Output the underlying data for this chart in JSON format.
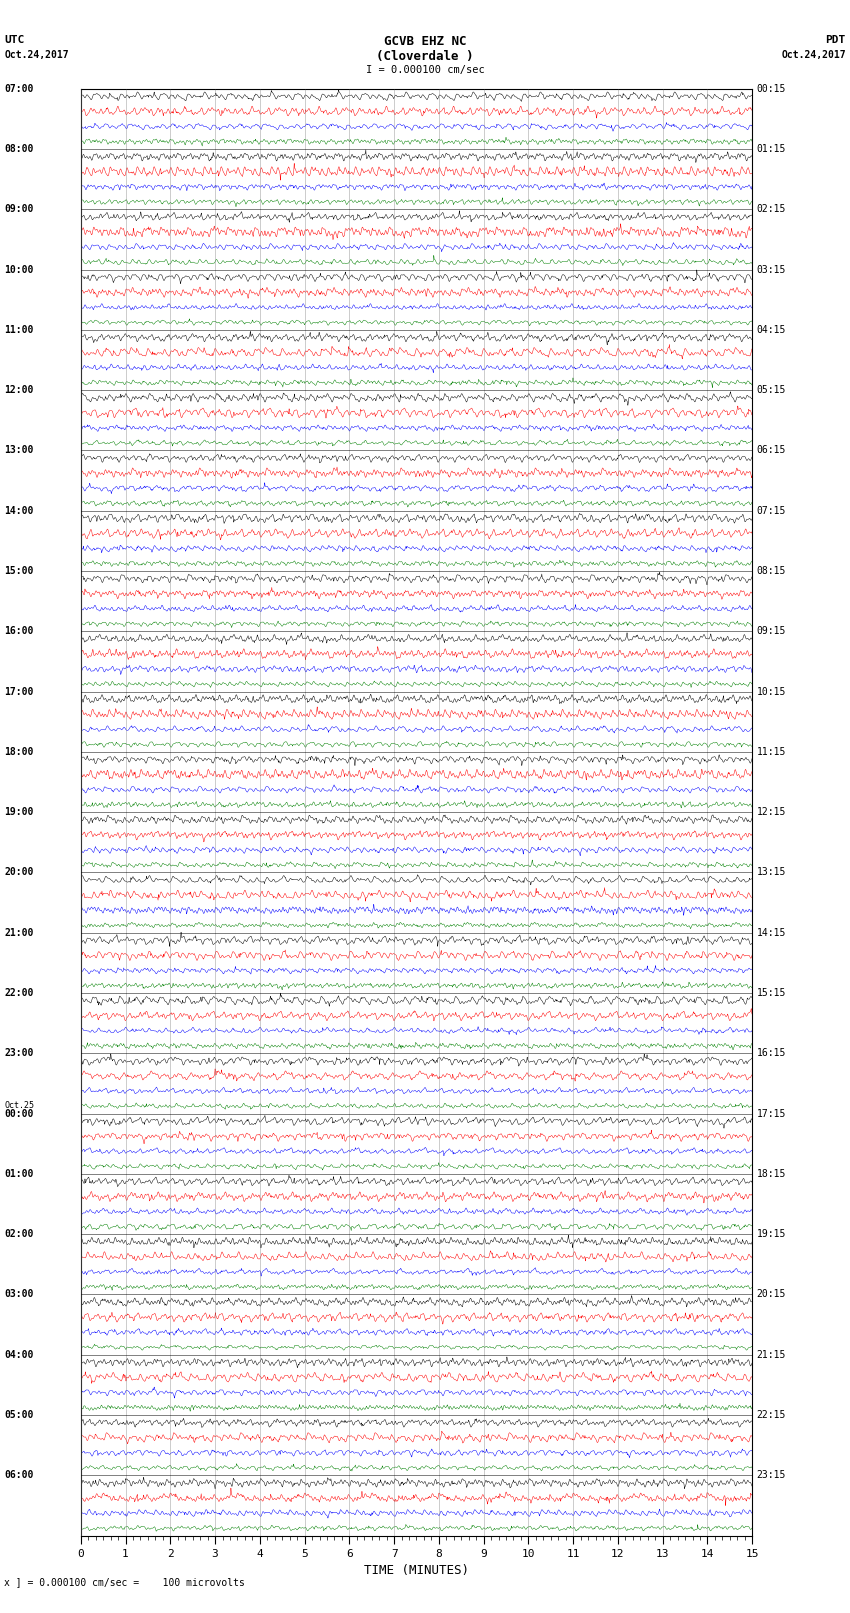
{
  "title_line1": "GCVB EHZ NC",
  "title_line2": "(Cloverdale )",
  "title_line3": "I = 0.000100 cm/sec",
  "label_utc": "UTC",
  "label_date_left": "Oct.24,2017",
  "label_pdt": "PDT",
  "label_date_right": "Oct.24,2017",
  "xlabel": "TIME (MINUTES)",
  "footer": "x ] = 0.000100 cm/sec =    100 microvolts",
  "left_labels": [
    "07:00",
    "08:00",
    "09:00",
    "10:00",
    "11:00",
    "12:00",
    "13:00",
    "14:00",
    "15:00",
    "16:00",
    "17:00",
    "18:00",
    "19:00",
    "20:00",
    "21:00",
    "22:00",
    "23:00",
    "Oct.25\n00:00",
    "01:00",
    "02:00",
    "03:00",
    "04:00",
    "05:00",
    "06:00"
  ],
  "right_labels": [
    "00:15",
    "01:15",
    "02:15",
    "03:15",
    "04:15",
    "05:15",
    "06:15",
    "07:15",
    "08:15",
    "09:15",
    "10:15",
    "11:15",
    "12:15",
    "13:15",
    "14:15",
    "15:15",
    "16:15",
    "17:15",
    "18:15",
    "19:15",
    "20:15",
    "21:15",
    "22:15",
    "23:15"
  ],
  "n_rows": 24,
  "n_traces_per_row": 4,
  "trace_colors": [
    "black",
    "red",
    "blue",
    "green"
  ],
  "x_min": 0,
  "x_max": 15,
  "x_ticks": [
    0,
    1,
    2,
    3,
    4,
    5,
    6,
    7,
    8,
    9,
    10,
    11,
    12,
    13,
    14,
    15
  ],
  "noise_amplitude": [
    0.28,
    0.32,
    0.22,
    0.18
  ],
  "background_color": "white",
  "fig_width": 8.5,
  "fig_height": 16.13,
  "dpi": 100
}
